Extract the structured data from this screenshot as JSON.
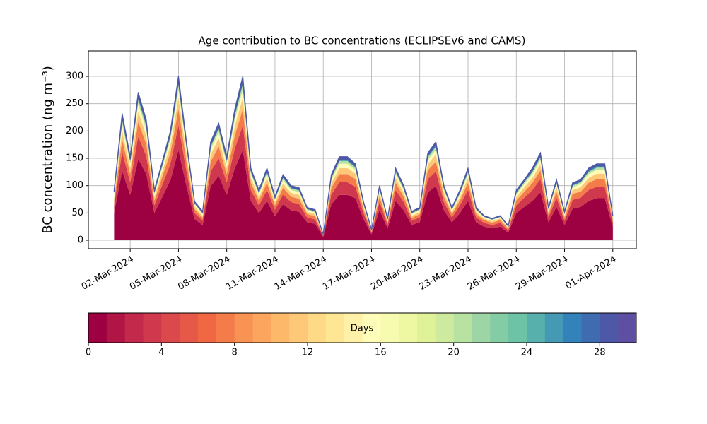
{
  "chart_data": {
    "type": "stacked-area",
    "title": "Age contribution to BC concentrations (ECLIPSEv6 and CAMS)",
    "ylabel": "BC concentration (ng m⁻³)",
    "grid": true,
    "xlim": [
      -0.6,
      33.46
    ],
    "ylim": [
      -15.5,
      346.6
    ],
    "yticks": [
      0,
      50,
      100,
      150,
      200,
      250,
      300
    ],
    "xticks": [
      {
        "value": 2,
        "label": "02-Mar-2024"
      },
      {
        "value": 5,
        "label": "05-Mar-2024"
      },
      {
        "value": 8,
        "label": "08-Mar-2024"
      },
      {
        "value": 11,
        "label": "11-Mar-2024"
      },
      {
        "value": 14,
        "label": "14-Mar-2024"
      },
      {
        "value": 17,
        "label": "17-Mar-2024"
      },
      {
        "value": 20,
        "label": "20-Mar-2024"
      },
      {
        "value": 23,
        "label": "23-Mar-2024"
      },
      {
        "value": 26,
        "label": "26-Mar-2024"
      },
      {
        "value": 29,
        "label": "29-Mar-2024"
      },
      {
        "value": 32,
        "label": "01-Apr-2024"
      }
    ],
    "x": [
      1,
      1.5,
      2,
      2.5,
      3,
      3.5,
      4,
      4.5,
      5,
      5.5,
      6,
      6.5,
      7,
      7.5,
      8,
      8.5,
      9,
      9.5,
      10,
      10.5,
      11,
      11.5,
      12,
      12.5,
      13,
      13.5,
      14,
      14.5,
      15,
      15.5,
      16,
      16.5,
      17,
      17.5,
      18,
      18.5,
      19,
      19.5,
      20,
      20.5,
      21,
      21.5,
      22,
      22.5,
      23,
      23.5,
      24,
      24.5,
      25,
      25.5,
      26,
      26.5,
      27,
      27.5,
      28,
      28.5,
      29,
      29.5,
      30,
      30.5,
      31,
      31.5,
      32
    ],
    "series": [
      {
        "color": "#9e0142",
        "values": [
          50,
          127,
          83,
          149,
          121,
          50,
          80,
          110,
          165,
          99,
          39,
          28,
          99,
          118,
          83,
          132,
          165,
          72,
          50,
          72,
          44,
          66,
          55,
          52,
          33,
          30,
          6,
          66,
          83,
          83,
          77,
          39,
          11,
          55,
          22,
          72,
          55,
          28,
          33,
          88,
          99,
          55,
          33,
          50,
          72,
          33,
          25,
          22,
          25,
          14,
          50,
          61,
          72,
          88,
          33,
          61,
          28,
          58,
          61,
          72,
          77,
          77,
          25
        ]
      },
      {
        "color": "#d0384e",
        "values": [
          14,
          35,
          23,
          41,
          33,
          14,
          22,
          30,
          45,
          27,
          11,
          8,
          27,
          32,
          23,
          36,
          45,
          20,
          14,
          20,
          12,
          18,
          15,
          14,
          9,
          8,
          2,
          18,
          23,
          23,
          21,
          11,
          3,
          15,
          6,
          20,
          15,
          8,
          9,
          24,
          27,
          15,
          9,
          14,
          20,
          9,
          7,
          6,
          7,
          4,
          14,
          17,
          20,
          24,
          9,
          17,
          8,
          16,
          17,
          20,
          21,
          21,
          7
        ]
      },
      {
        "color": "#f47c4a",
        "values": [
          9,
          23,
          15,
          27,
          22,
          9,
          15,
          20,
          30,
          18,
          7,
          5,
          18,
          22,
          15,
          24,
          30,
          13,
          9,
          13,
          8,
          12,
          10,
          10,
          6,
          6,
          1,
          12,
          15,
          15,
          14,
          7,
          2,
          10,
          4,
          13,
          10,
          5,
          6,
          16,
          18,
          10,
          6,
          9,
          13,
          6,
          5,
          4,
          5,
          3,
          9,
          11,
          13,
          16,
          6,
          11,
          5,
          11,
          11,
          13,
          14,
          14,
          5
        ]
      },
      {
        "color": "#fdc877",
        "values": [
          6,
          16,
          11,
          19,
          15,
          6,
          10,
          14,
          21,
          13,
          5,
          4,
          13,
          15,
          11,
          17,
          21,
          9,
          6,
          9,
          6,
          8,
          7,
          7,
          4,
          4,
          1,
          8,
          11,
          11,
          10,
          5,
          1,
          7,
          3,
          9,
          7,
          4,
          4,
          11,
          13,
          7,
          4,
          6,
          9,
          4,
          3,
          3,
          3,
          2,
          6,
          8,
          9,
          11,
          4,
          8,
          4,
          7,
          8,
          9,
          10,
          10,
          3
        ]
      },
      {
        "color": "#fefcb9",
        "values": [
          5,
          12,
          8,
          14,
          11,
          5,
          7,
          10,
          15,
          9,
          4,
          3,
          9,
          11,
          8,
          12,
          15,
          7,
          5,
          7,
          4,
          6,
          5,
          5,
          3,
          3,
          1,
          6,
          8,
          8,
          7,
          4,
          1,
          5,
          2,
          7,
          5,
          3,
          3,
          8,
          9,
          5,
          3,
          5,
          7,
          3,
          2,
          2,
          2,
          1,
          5,
          6,
          7,
          8,
          3,
          6,
          3,
          5,
          6,
          7,
          7,
          7,
          2
        ]
      },
      {
        "color": "#b7e2a1",
        "values": [
          3,
          7,
          5,
          8,
          7,
          3,
          4,
          6,
          9,
          5,
          2,
          2,
          5,
          6,
          5,
          7,
          9,
          4,
          3,
          4,
          2,
          4,
          3,
          3,
          2,
          2,
          0,
          4,
          5,
          5,
          4,
          2,
          1,
          3,
          1,
          4,
          3,
          2,
          2,
          5,
          5,
          3,
          2,
          3,
          4,
          2,
          1,
          1,
          1,
          1,
          3,
          3,
          4,
          5,
          2,
          3,
          2,
          3,
          3,
          4,
          4,
          4,
          1
        ]
      },
      {
        "color": "#4499b4",
        "values": [
          2,
          5,
          3,
          5,
          4,
          2,
          3,
          4,
          6,
          4,
          1,
          1,
          4,
          4,
          3,
          5,
          6,
          3,
          2,
          3,
          2,
          2,
          2,
          2,
          1,
          1,
          0,
          2,
          3,
          3,
          3,
          1,
          0,
          2,
          1,
          3,
          2,
          1,
          1,
          3,
          4,
          2,
          1,
          2,
          3,
          1,
          1,
          1,
          1,
          1,
          2,
          2,
          3,
          3,
          1,
          2,
          1,
          2,
          2,
          3,
          3,
          3,
          1
        ]
      },
      {
        "color": "#4d59a6",
        "values": [
          3,
          7,
          5,
          8,
          7,
          3,
          4,
          6,
          9,
          5,
          2,
          2,
          5,
          6,
          5,
          7,
          9,
          4,
          3,
          4,
          2,
          4,
          3,
          3,
          2,
          2,
          0,
          4,
          5,
          5,
          4,
          2,
          1,
          3,
          1,
          4,
          3,
          2,
          2,
          5,
          5,
          3,
          2,
          3,
          4,
          2,
          1,
          1,
          1,
          1,
          3,
          3,
          4,
          5,
          2,
          3,
          2,
          3,
          3,
          4,
          4,
          4,
          1
        ]
      }
    ],
    "colorbar": {
      "label": "Days",
      "lim": [
        0,
        30
      ],
      "ticks": [
        0,
        4,
        8,
        12,
        16,
        20,
        24,
        28
      ],
      "colors": [
        "#9e0142",
        "#b01546",
        "#c2294a",
        "#d0384e",
        "#dc494c",
        "#e65848",
        "#f06744",
        "#f47c4a",
        "#f89354",
        "#fba55e",
        "#fdb869",
        "#fdc877",
        "#fed986",
        "#fee695",
        "#fff2a8",
        "#fefcb9",
        "#f7fbaf",
        "#eef8a3",
        "#e0f297",
        "#cdea9e",
        "#b7e2a1",
        "#9dd6a4",
        "#83cca5",
        "#6cc3a5",
        "#57b0ab",
        "#4499b4",
        "#3382ba",
        "#3f6cb0",
        "#4d59a6",
        "#5e4fa2"
      ]
    }
  }
}
